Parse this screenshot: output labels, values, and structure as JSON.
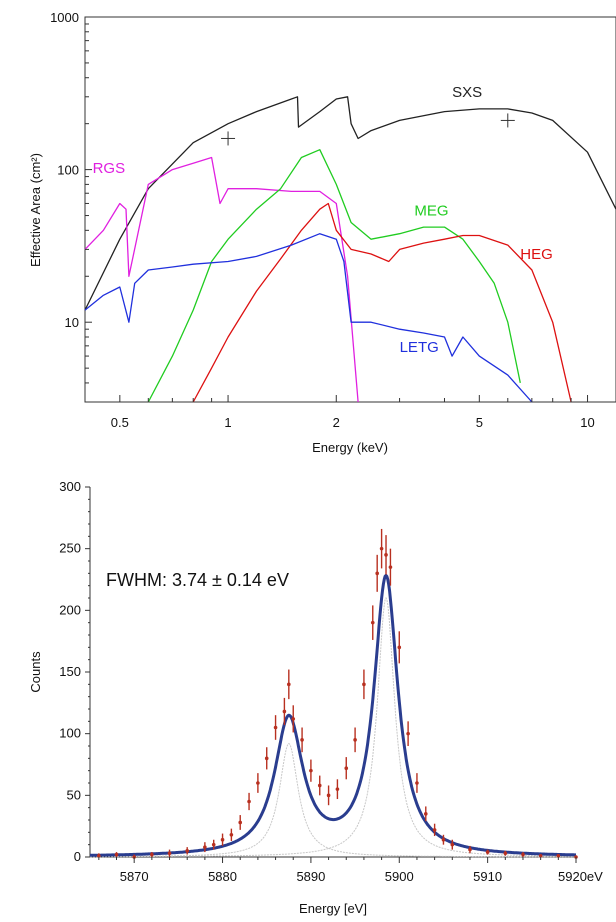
{
  "chart_data": [
    {
      "type": "line",
      "xlabel": "Energy (keV)",
      "ylabel": "Effective Area (cm²)",
      "x_scale": "log",
      "y_scale": "log",
      "xlim": [
        0.4,
        12
      ],
      "ylim": [
        3,
        1000
      ],
      "xticks": [
        0.5,
        1,
        2,
        5,
        10
      ],
      "xtick_labels": [
        "0.5",
        "1",
        "2",
        "5",
        "10"
      ],
      "yticks": [
        10,
        100,
        1000
      ],
      "ytick_labels": [
        "10",
        "100",
        "1000"
      ],
      "grid": false,
      "series": [
        {
          "name": "SXS",
          "color": "#222222",
          "label_at": [
            4.2,
            300
          ],
          "x": [
            0.4,
            0.5,
            0.6,
            0.8,
            1.0,
            1.2,
            1.5,
            1.56,
            1.57,
            1.8,
            2.0,
            2.15,
            2.2,
            2.3,
            2.5,
            3.0,
            4.0,
            5.0,
            6.0,
            7.0,
            8.0,
            10.0,
            12.0
          ],
          "y": [
            12,
            35,
            75,
            150,
            200,
            240,
            290,
            300,
            190,
            240,
            290,
            300,
            200,
            160,
            180,
            210,
            240,
            250,
            250,
            235,
            210,
            130,
            55
          ]
        },
        {
          "name": "RGS",
          "color": "#e020e0",
          "label_at": [
            0.42,
            95
          ],
          "x": [
            0.4,
            0.45,
            0.5,
            0.52,
            0.53,
            0.6,
            0.7,
            0.8,
            0.9,
            0.95,
            1.0,
            1.2,
            1.5,
            1.8,
            2.0,
            2.15,
            2.3
          ],
          "y": [
            30,
            40,
            60,
            55,
            20,
            80,
            100,
            110,
            120,
            60,
            75,
            75,
            72,
            72,
            60,
            20,
            3
          ]
        },
        {
          "name": "MEG",
          "color": "#20cc20",
          "label_at": [
            3.3,
            50
          ],
          "x": [
            0.6,
            0.7,
            0.8,
            0.9,
            1.0,
            1.2,
            1.4,
            1.6,
            1.8,
            2.0,
            2.2,
            2.5,
            3.0,
            3.5,
            4.0,
            4.5,
            5.0,
            5.5,
            6.0,
            6.5
          ],
          "y": [
            3,
            6,
            12,
            25,
            35,
            55,
            75,
            120,
            135,
            80,
            45,
            35,
            38,
            42,
            42,
            35,
            25,
            18,
            10,
            4
          ]
        },
        {
          "name": "HEG",
          "color": "#dd1111",
          "label_at": [
            6.5,
            26
          ],
          "x": [
            0.8,
            0.9,
            1.0,
            1.2,
            1.4,
            1.6,
            1.8,
            1.9,
            2.0,
            2.2,
            2.5,
            2.8,
            3.0,
            3.5,
            4.0,
            4.5,
            5.0,
            6.0,
            7.0,
            8.0,
            9.0
          ],
          "y": [
            3,
            5,
            8,
            16,
            26,
            40,
            55,
            60,
            40,
            30,
            28,
            25,
            30,
            33,
            35,
            37,
            37,
            32,
            22,
            10,
            3
          ]
        },
        {
          "name": "LETG",
          "color": "#2030dd",
          "label_at": [
            3.0,
            6.4
          ],
          "x": [
            0.4,
            0.45,
            0.5,
            0.53,
            0.55,
            0.6,
            0.7,
            0.8,
            1.0,
            1.2,
            1.5,
            1.8,
            2.0,
            2.1,
            2.2,
            2.5,
            3.0,
            3.5,
            4.0,
            4.2,
            4.5,
            5.0,
            6.0,
            7.0
          ],
          "y": [
            12,
            15,
            17,
            10,
            18,
            22,
            23,
            24,
            25,
            27,
            32,
            38,
            35,
            25,
            10,
            10,
            9,
            8.5,
            8,
            6,
            8,
            6,
            4.5,
            3
          ]
        }
      ],
      "markers": [
        {
          "shape": "plus",
          "x": 1.0,
          "y": 160
        },
        {
          "shape": "plus",
          "x": 6.0,
          "y": 210
        }
      ]
    },
    {
      "type": "line",
      "xlabel": "Energy [eV]",
      "ylabel": "Counts",
      "annotation": "FWHM: 3.74 ± 0.14 eV",
      "xlim": [
        5865,
        5920
      ],
      "ylim": [
        0,
        300
      ],
      "xticks": [
        5870,
        5880,
        5890,
        5900,
        5910,
        5920
      ],
      "xtick_labels": [
        "5870",
        "5880",
        "5890",
        "5900",
        "5910",
        "5920eV"
      ],
      "yticks": [
        0,
        50,
        100,
        150,
        200,
        250,
        300
      ],
      "ytick_labels": [
        "0",
        "50",
        "100",
        "150",
        "200",
        "250",
        "300"
      ],
      "grid": false,
      "fit": {
        "color": "#2a3d8f",
        "peaks": [
          {
            "center": 5887.5,
            "amplitude": 110,
            "fwhm": 3.9
          },
          {
            "center": 5898.5,
            "amplitude": 225,
            "fwhm": 3.3
          }
        ]
      },
      "components": {
        "color": "#c8c8c8",
        "peaks": [
          {
            "center": 5887.5,
            "amplitude": 92,
            "fwhm": 2.6
          },
          {
            "center": 5898.5,
            "amplitude": 210,
            "fwhm": 2.4
          }
        ]
      },
      "data_points": {
        "color": "#b83020",
        "x": [
          5866,
          5868,
          5870,
          5872,
          5874,
          5876,
          5878,
          5879,
          5880,
          5881,
          5882,
          5883,
          5884,
          5885,
          5886,
          5887,
          5887.5,
          5888,
          5889,
          5890,
          5891,
          5892,
          5893,
          5894,
          5895,
          5896,
          5897,
          5897.5,
          5898,
          5898.5,
          5899,
          5900,
          5901,
          5902,
          5903,
          5904,
          5905,
          5906,
          5908,
          5910,
          5912,
          5914,
          5916,
          5918,
          5920
        ],
        "y": [
          1,
          2,
          0,
          2,
          3,
          5,
          8,
          10,
          14,
          18,
          28,
          45,
          60,
          80,
          105,
          118,
          140,
          112,
          95,
          70,
          58,
          50,
          55,
          72,
          95,
          140,
          190,
          230,
          250,
          245,
          235,
          170,
          100,
          60,
          35,
          22,
          14,
          10,
          6,
          4,
          3,
          2,
          1,
          1,
          0
        ],
        "err": [
          2,
          2,
          2,
          2,
          3,
          3,
          4,
          4,
          5,
          5,
          6,
          7,
          8,
          9,
          10,
          11,
          12,
          11,
          10,
          9,
          8,
          8,
          8,
          9,
          10,
          12,
          14,
          15,
          16,
          16,
          15,
          13,
          10,
          8,
          6,
          5,
          4,
          4,
          3,
          2,
          2,
          2,
          1,
          1,
          1
        ]
      }
    }
  ]
}
